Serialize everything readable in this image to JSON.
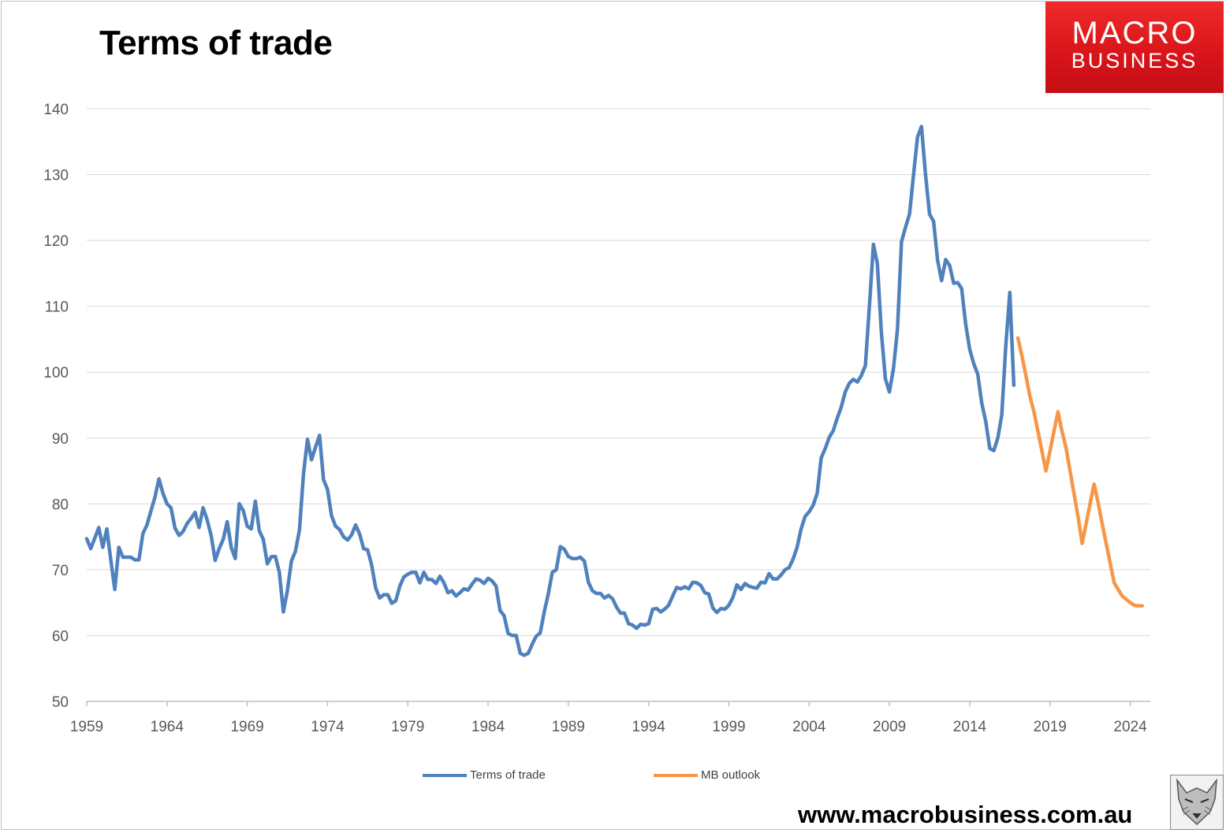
{
  "header": {
    "title": "Terms of trade"
  },
  "logo": {
    "line1": "MACRO",
    "line2": "BUSINESS",
    "color": "#e3181e"
  },
  "footer": {
    "website": "www.macrobusiness.com.au"
  },
  "chart_data": {
    "type": "line",
    "title": "Terms of trade",
    "xlabel": "",
    "ylabel": "",
    "xlim": [
      1959,
      2025.25
    ],
    "ylim": [
      50,
      140
    ],
    "yticks": [
      50,
      60,
      70,
      80,
      90,
      100,
      110,
      120,
      130,
      140
    ],
    "xticks": [
      1959,
      1964,
      1969,
      1974,
      1979,
      1984,
      1989,
      1994,
      1999,
      2004,
      2009,
      2014,
      2019,
      2024
    ],
    "grid": true,
    "legend_position": "bottom",
    "series": [
      {
        "name": "Terms of trade",
        "color": "#4f81bd",
        "points": [
          [
            1959.0,
            74.7
          ],
          [
            1959.25,
            73.2
          ],
          [
            1959.5,
            74.8
          ],
          [
            1959.75,
            76.4
          ],
          [
            1960.0,
            73.4
          ],
          [
            1960.25,
            76.2
          ],
          [
            1960.5,
            71.5
          ],
          [
            1960.75,
            67.0
          ],
          [
            1961.0,
            73.4
          ],
          [
            1961.25,
            71.9
          ],
          [
            1961.5,
            71.9
          ],
          [
            1961.75,
            71.9
          ],
          [
            1962.0,
            71.5
          ],
          [
            1962.25,
            71.5
          ],
          [
            1962.5,
            75.5
          ],
          [
            1962.75,
            76.8
          ],
          [
            1963.0,
            78.9
          ],
          [
            1963.25,
            81.0
          ],
          [
            1963.5,
            83.8
          ],
          [
            1963.75,
            81.6
          ],
          [
            1964.0,
            80.0
          ],
          [
            1964.25,
            79.4
          ],
          [
            1964.5,
            76.3
          ],
          [
            1964.75,
            75.2
          ],
          [
            1965.0,
            75.8
          ],
          [
            1965.25,
            77.0
          ],
          [
            1965.5,
            77.8
          ],
          [
            1965.75,
            78.7
          ],
          [
            1966.0,
            76.4
          ],
          [
            1966.25,
            79.4
          ],
          [
            1966.5,
            77.6
          ],
          [
            1966.75,
            75.2
          ],
          [
            1967.0,
            71.4
          ],
          [
            1967.25,
            73.2
          ],
          [
            1967.5,
            74.6
          ],
          [
            1967.75,
            77.3
          ],
          [
            1968.0,
            73.4
          ],
          [
            1968.25,
            71.7
          ],
          [
            1968.5,
            80.0
          ],
          [
            1968.75,
            79.0
          ],
          [
            1969.0,
            76.6
          ],
          [
            1969.25,
            76.2
          ],
          [
            1969.5,
            80.4
          ],
          [
            1969.75,
            75.9
          ],
          [
            1970.0,
            74.6
          ],
          [
            1970.25,
            70.9
          ],
          [
            1970.5,
            72.0
          ],
          [
            1970.75,
            72.0
          ],
          [
            1971.0,
            69.6
          ],
          [
            1971.25,
            63.6
          ],
          [
            1971.5,
            66.8
          ],
          [
            1971.75,
            71.3
          ],
          [
            1972.0,
            72.8
          ],
          [
            1972.25,
            76.0
          ],
          [
            1972.5,
            84.5
          ],
          [
            1972.75,
            89.8
          ],
          [
            1973.0,
            86.7
          ],
          [
            1973.25,
            88.6
          ],
          [
            1973.5,
            90.4
          ],
          [
            1973.75,
            83.7
          ],
          [
            1974.0,
            82.2
          ],
          [
            1974.25,
            78.2
          ],
          [
            1974.5,
            76.6
          ],
          [
            1974.75,
            76.1
          ],
          [
            1975.0,
            75.0
          ],
          [
            1975.25,
            74.5
          ],
          [
            1975.5,
            75.3
          ],
          [
            1975.75,
            76.8
          ],
          [
            1976.0,
            75.4
          ],
          [
            1976.25,
            73.2
          ],
          [
            1976.5,
            73.0
          ],
          [
            1976.75,
            70.7
          ],
          [
            1977.0,
            67.2
          ],
          [
            1977.25,
            65.7
          ],
          [
            1977.5,
            66.2
          ],
          [
            1977.75,
            66.2
          ],
          [
            1978.0,
            64.9
          ],
          [
            1978.25,
            65.3
          ],
          [
            1978.5,
            67.5
          ],
          [
            1978.75,
            68.9
          ],
          [
            1979.0,
            69.3
          ],
          [
            1979.25,
            69.6
          ],
          [
            1979.5,
            69.6
          ],
          [
            1979.75,
            68.0
          ],
          [
            1980.0,
            69.6
          ],
          [
            1980.25,
            68.5
          ],
          [
            1980.5,
            68.5
          ],
          [
            1980.75,
            67.9
          ],
          [
            1981.0,
            69.0
          ],
          [
            1981.25,
            68.0
          ],
          [
            1981.5,
            66.5
          ],
          [
            1981.75,
            66.8
          ],
          [
            1982.0,
            66.0
          ],
          [
            1982.25,
            66.5
          ],
          [
            1982.5,
            67.1
          ],
          [
            1982.75,
            66.9
          ],
          [
            1983.0,
            67.8
          ],
          [
            1983.25,
            68.6
          ],
          [
            1983.5,
            68.4
          ],
          [
            1983.75,
            67.9
          ],
          [
            1984.0,
            68.7
          ],
          [
            1984.25,
            68.3
          ],
          [
            1984.5,
            67.5
          ],
          [
            1984.75,
            63.8
          ],
          [
            1985.0,
            63.0
          ],
          [
            1985.25,
            60.3
          ],
          [
            1985.5,
            60.0
          ],
          [
            1985.75,
            60.0
          ],
          [
            1986.0,
            57.3
          ],
          [
            1986.25,
            57.0
          ],
          [
            1986.5,
            57.3
          ],
          [
            1986.75,
            58.7
          ],
          [
            1987.0,
            59.9
          ],
          [
            1987.25,
            60.4
          ],
          [
            1987.5,
            63.6
          ],
          [
            1987.75,
            66.3
          ],
          [
            1988.0,
            69.6
          ],
          [
            1988.25,
            70.0
          ],
          [
            1988.5,
            73.5
          ],
          [
            1988.75,
            73.1
          ],
          [
            1989.0,
            72.0
          ],
          [
            1989.25,
            71.7
          ],
          [
            1989.5,
            71.7
          ],
          [
            1989.75,
            71.9
          ],
          [
            1990.0,
            71.3
          ],
          [
            1990.25,
            68.1
          ],
          [
            1990.5,
            66.8
          ],
          [
            1990.75,
            66.4
          ],
          [
            1991.0,
            66.4
          ],
          [
            1991.25,
            65.7
          ],
          [
            1991.5,
            66.1
          ],
          [
            1991.75,
            65.6
          ],
          [
            1992.0,
            64.3
          ],
          [
            1992.25,
            63.4
          ],
          [
            1992.5,
            63.4
          ],
          [
            1992.75,
            61.8
          ],
          [
            1993.0,
            61.6
          ],
          [
            1993.25,
            61.1
          ],
          [
            1993.5,
            61.7
          ],
          [
            1993.75,
            61.6
          ],
          [
            1994.0,
            61.8
          ],
          [
            1994.25,
            64.0
          ],
          [
            1994.5,
            64.1
          ],
          [
            1994.75,
            63.6
          ],
          [
            1995.0,
            64.0
          ],
          [
            1995.25,
            64.6
          ],
          [
            1995.5,
            66.0
          ],
          [
            1995.75,
            67.3
          ],
          [
            1996.0,
            67.1
          ],
          [
            1996.25,
            67.4
          ],
          [
            1996.5,
            67.1
          ],
          [
            1996.75,
            68.1
          ],
          [
            1997.0,
            68.0
          ],
          [
            1997.25,
            67.6
          ],
          [
            1997.5,
            66.5
          ],
          [
            1997.75,
            66.3
          ],
          [
            1998.0,
            64.2
          ],
          [
            1998.25,
            63.5
          ],
          [
            1998.5,
            64.1
          ],
          [
            1998.75,
            64.0
          ],
          [
            1999.0,
            64.6
          ],
          [
            1999.25,
            65.8
          ],
          [
            1999.5,
            67.7
          ],
          [
            1999.75,
            67.0
          ],
          [
            2000.0,
            67.9
          ],
          [
            2000.25,
            67.5
          ],
          [
            2000.5,
            67.3
          ],
          [
            2000.75,
            67.2
          ],
          [
            2001.0,
            68.1
          ],
          [
            2001.25,
            68.0
          ],
          [
            2001.5,
            69.4
          ],
          [
            2001.75,
            68.6
          ],
          [
            2002.0,
            68.6
          ],
          [
            2002.25,
            69.2
          ],
          [
            2002.5,
            70.0
          ],
          [
            2002.75,
            70.3
          ],
          [
            2003.0,
            71.6
          ],
          [
            2003.25,
            73.4
          ],
          [
            2003.5,
            76.2
          ],
          [
            2003.75,
            78.1
          ],
          [
            2004.0,
            78.8
          ],
          [
            2004.25,
            79.8
          ],
          [
            2004.5,
            81.6
          ],
          [
            2004.75,
            87.0
          ],
          [
            2005.0,
            88.4
          ],
          [
            2005.25,
            90.1
          ],
          [
            2005.5,
            91.1
          ],
          [
            2005.75,
            93.0
          ],
          [
            2006.0,
            94.7
          ],
          [
            2006.25,
            97.0
          ],
          [
            2006.5,
            98.3
          ],
          [
            2006.75,
            98.9
          ],
          [
            2007.0,
            98.5
          ],
          [
            2007.25,
            99.5
          ],
          [
            2007.5,
            101.0
          ],
          [
            2007.75,
            110.0
          ],
          [
            2008.0,
            119.4
          ],
          [
            2008.25,
            116.5
          ],
          [
            2008.5,
            106.0
          ],
          [
            2008.75,
            99.0
          ],
          [
            2009.0,
            97.0
          ],
          [
            2009.25,
            100.5
          ],
          [
            2009.5,
            106.5
          ],
          [
            2009.75,
            119.8
          ],
          [
            2010.0,
            122.0
          ],
          [
            2010.25,
            124.0
          ],
          [
            2010.5,
            130.0
          ],
          [
            2010.75,
            135.7
          ],
          [
            2011.0,
            137.3
          ],
          [
            2011.25,
            130.0
          ],
          [
            2011.5,
            124.0
          ],
          [
            2011.75,
            122.9
          ],
          [
            2012.0,
            117.0
          ],
          [
            2012.25,
            113.9
          ],
          [
            2012.5,
            117.1
          ],
          [
            2012.75,
            116.2
          ],
          [
            2013.0,
            113.5
          ],
          [
            2013.25,
            113.6
          ],
          [
            2013.5,
            112.7
          ],
          [
            2013.75,
            107.3
          ],
          [
            2014.0,
            103.5
          ],
          [
            2014.25,
            101.3
          ],
          [
            2014.5,
            99.7
          ],
          [
            2014.75,
            95.3
          ],
          [
            2015.0,
            92.5
          ],
          [
            2015.25,
            88.4
          ],
          [
            2015.5,
            88.1
          ],
          [
            2015.75,
            90.0
          ],
          [
            2016.0,
            93.5
          ],
          [
            2016.25,
            104.0
          ],
          [
            2016.5,
            112.1
          ],
          [
            2016.75,
            98.0
          ]
        ]
      },
      {
        "name": "MB outlook",
        "color": "#f79646",
        "points": [
          [
            2017.0,
            105.2
          ],
          [
            2017.25,
            102.5
          ],
          [
            2017.5,
            99.5
          ],
          [
            2017.75,
            96.3
          ],
          [
            2018.0,
            94.0
          ],
          [
            2018.25,
            91.0
          ],
          [
            2018.5,
            88.0
          ],
          [
            2018.75,
            85.0
          ],
          [
            2019.0,
            88.0
          ],
          [
            2019.25,
            91.0
          ],
          [
            2019.5,
            94.0
          ],
          [
            2019.75,
            91.0
          ],
          [
            2020.0,
            88.5
          ],
          [
            2020.25,
            85.0
          ],
          [
            2020.5,
            81.5
          ],
          [
            2020.75,
            78.0
          ],
          [
            2021.0,
            74.0
          ],
          [
            2021.25,
            77.0
          ],
          [
            2021.5,
            80.0
          ],
          [
            2021.75,
            83.0
          ],
          [
            2022.0,
            80.2
          ],
          [
            2022.25,
            77.0
          ],
          [
            2022.5,
            74.0
          ],
          [
            2022.75,
            71.0
          ],
          [
            2023.0,
            68.0
          ],
          [
            2023.25,
            67.0
          ],
          [
            2023.5,
            66.0
          ],
          [
            2023.75,
            65.5
          ],
          [
            2024.0,
            65.0
          ],
          [
            2024.25,
            64.6
          ],
          [
            2024.5,
            64.5
          ],
          [
            2024.75,
            64.5
          ]
        ]
      }
    ]
  }
}
